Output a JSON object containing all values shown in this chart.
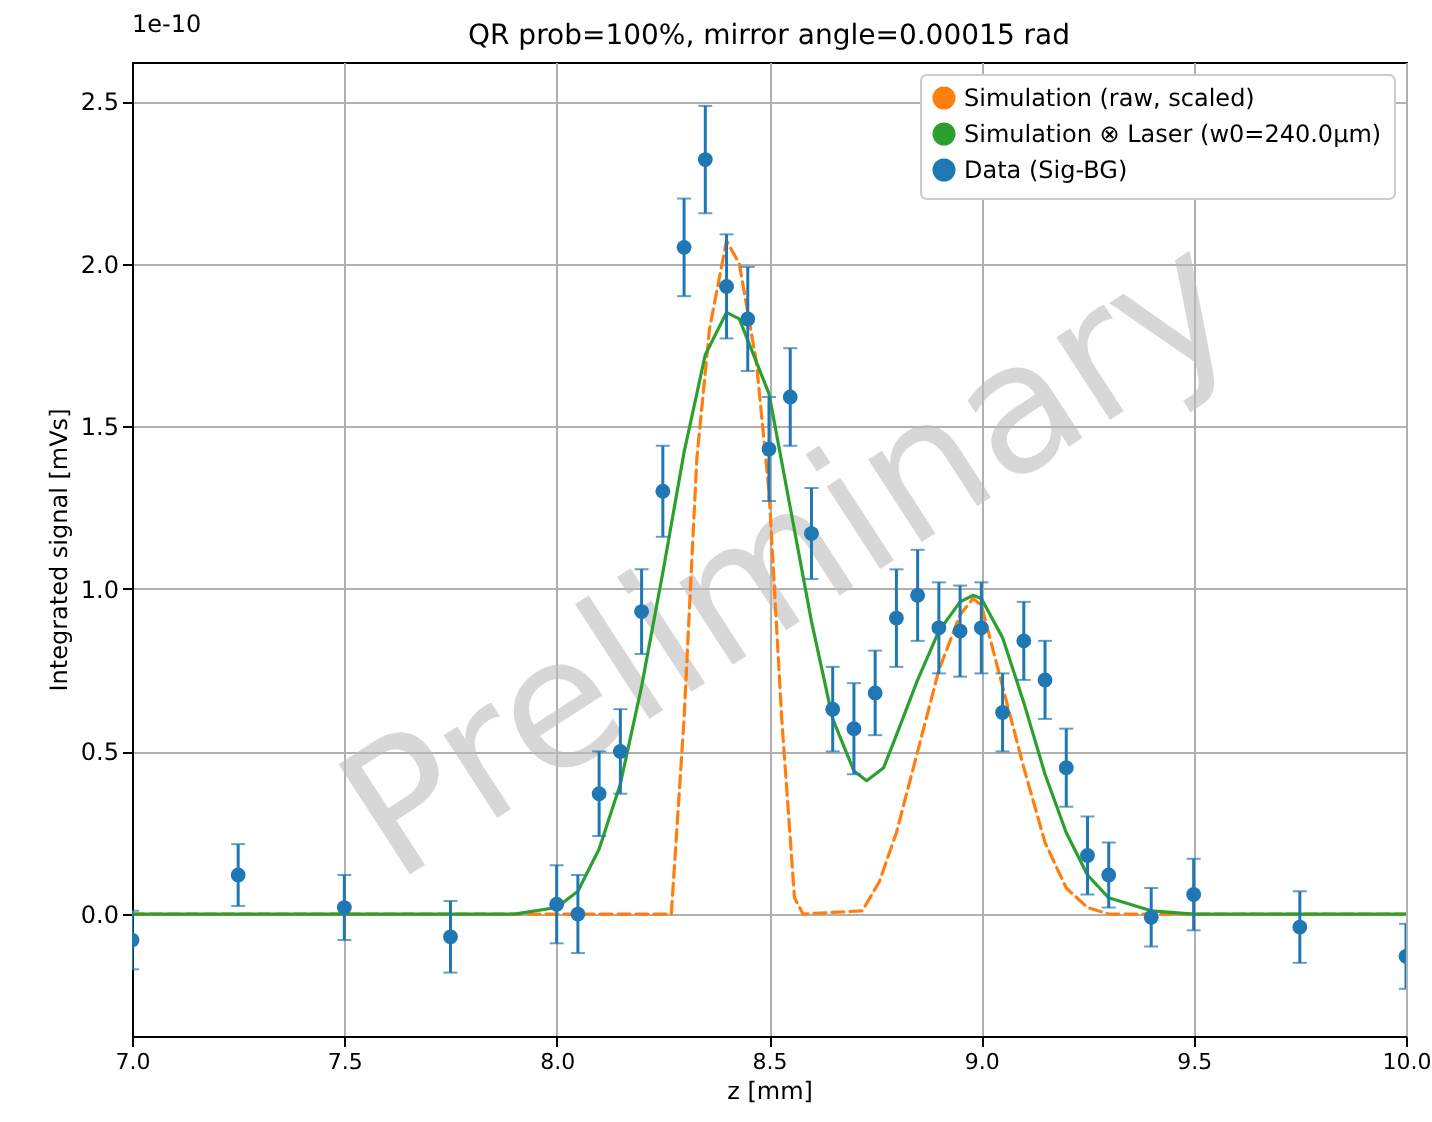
{
  "chart_data": {
    "type": "line",
    "title": "QR prob=100%, mirror angle=0.00015 rad",
    "xlabel": "z [mm]",
    "ylabel": "Integrated signal [mVs]",
    "annotations": [
      "1e-10",
      "Preliminary"
    ],
    "xlim": [
      7.0,
      10.0
    ],
    "xticks": [
      {
        "value": 7,
        "label": "7.0"
      },
      7.5,
      {
        "value": 8,
        "label": "8.0"
      },
      8.5,
      {
        "value": 9,
        "label": "9.0"
      },
      9.5,
      {
        "value": 10,
        "label": "10.0"
      }
    ],
    "ylim": [
      -0.375,
      2.62
    ],
    "yticks": [
      {
        "value": 0,
        "label": "0.0"
      },
      0.5,
      {
        "value": 1,
        "label": "1.0"
      },
      1.5,
      {
        "value": 2,
        "label": "2.0"
      },
      2.5
    ],
    "grid": true,
    "legend": "top right",
    "series": [
      {
        "name": "Simulation (raw, scaled)",
        "color": "#ff7f0e",
        "line_style": "dashed",
        "marker": "none",
        "x": [
          7.0,
          8.27,
          8.3,
          8.33,
          8.36,
          8.4,
          8.43,
          8.47,
          8.5,
          8.53,
          8.56,
          8.58,
          8.72,
          8.76,
          8.8,
          8.85,
          8.9,
          8.95,
          8.98,
          9.0,
          9.05,
          9.1,
          9.15,
          9.2,
          9.25,
          9.3,
          10.0
        ],
        "values": [
          0,
          0,
          0.6,
          1.4,
          1.8,
          2.07,
          2.0,
          1.7,
          1.3,
          0.6,
          0.05,
          0,
          0.01,
          0.1,
          0.25,
          0.5,
          0.75,
          0.92,
          0.97,
          0.95,
          0.7,
          0.45,
          0.22,
          0.08,
          0.02,
          0,
          0
        ]
      },
      {
        "name": "Simulation ⊗ Laser (w0=240.0μm)",
        "color": "#2ca02c",
        "line_style": "solid",
        "marker": "none",
        "x": [
          7.0,
          7.9,
          8.0,
          8.05,
          8.1,
          8.15,
          8.2,
          8.25,
          8.3,
          8.35,
          8.4,
          8.43,
          8.5,
          8.55,
          8.6,
          8.65,
          8.7,
          8.73,
          8.77,
          8.8,
          8.85,
          8.9,
          8.95,
          8.98,
          9.0,
          9.05,
          9.1,
          9.15,
          9.2,
          9.25,
          9.3,
          9.4,
          9.5,
          10.0
        ],
        "values": [
          0,
          0,
          0.02,
          0.07,
          0.2,
          0.4,
          0.7,
          1.05,
          1.42,
          1.72,
          1.85,
          1.83,
          1.6,
          1.25,
          0.9,
          0.6,
          0.44,
          0.41,
          0.45,
          0.55,
          0.72,
          0.87,
          0.96,
          0.98,
          0.97,
          0.85,
          0.65,
          0.43,
          0.25,
          0.12,
          0.05,
          0.01,
          0,
          0
        ]
      },
      {
        "name": "Data (Sig-BG)",
        "type": "scatter",
        "color": "#1f77b4",
        "marker": "circle",
        "x": [
          7.0,
          7.25,
          7.5,
          7.75,
          8.0,
          8.05,
          8.1,
          8.15,
          8.2,
          8.25,
          8.3,
          8.35,
          8.4,
          8.45,
          8.5,
          8.55,
          8.6,
          8.65,
          8.7,
          8.75,
          8.8,
          8.85,
          8.9,
          8.95,
          9.0,
          9.05,
          9.1,
          9.15,
          9.2,
          9.25,
          9.3,
          9.4,
          9.5,
          9.75,
          10.0
        ],
        "values": [
          -0.08,
          0.12,
          0.02,
          -0.07,
          0.03,
          0.0,
          0.37,
          0.5,
          0.93,
          1.3,
          2.05,
          2.32,
          1.93,
          1.83,
          1.43,
          1.59,
          1.17,
          0.63,
          0.57,
          0.68,
          0.91,
          0.98,
          0.88,
          0.87,
          0.88,
          0.62,
          0.84,
          0.72,
          0.45,
          0.18,
          0.12,
          -0.01,
          0.06,
          -0.04,
          -0.13
        ],
        "errors": [
          0.09,
          0.095,
          0.1,
          0.11,
          0.12,
          0.12,
          0.13,
          0.13,
          0.13,
          0.14,
          0.15,
          0.165,
          0.16,
          0.16,
          0.16,
          0.15,
          0.14,
          0.13,
          0.14,
          0.13,
          0.15,
          0.14,
          0.14,
          0.14,
          0.14,
          0.12,
          0.12,
          0.12,
          0.12,
          0.12,
          0.1,
          0.09,
          0.11,
          0.11,
          0.1
        ]
      }
    ]
  }
}
